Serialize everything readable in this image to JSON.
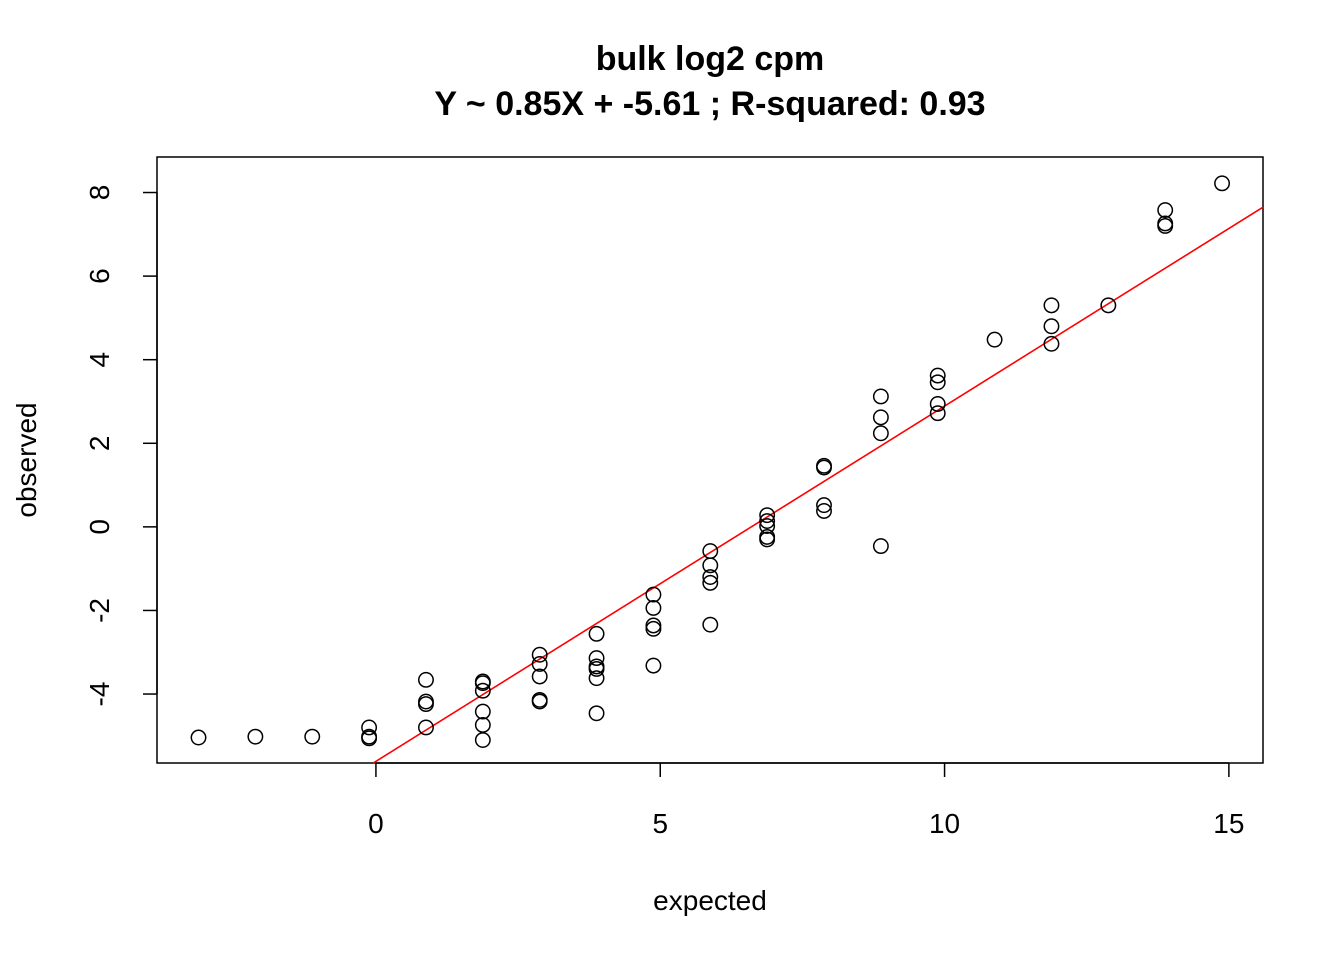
{
  "chart_data": {
    "type": "scatter",
    "title": "bulk log2 cpm",
    "subtitle": "Y ~ 0.85X + -5.61 ; R-squared: 0.93",
    "xlabel": "expected",
    "ylabel": "observed",
    "xlim": [
      -3.85,
      15.6
    ],
    "ylim": [
      -5.65,
      8.85
    ],
    "xticks": [
      0,
      5,
      10,
      15
    ],
    "yticks": [
      -4,
      -2,
      0,
      2,
      4,
      6,
      8
    ],
    "grid": false,
    "regression": {
      "slope": 0.85,
      "intercept": -5.61,
      "color": "#ff0000"
    },
    "series": [
      {
        "points": [
          [
            -3.12,
            -5.04
          ],
          [
            -2.12,
            -5.02
          ],
          [
            -1.12,
            -5.02
          ],
          [
            -0.12,
            -4.8
          ],
          [
            -0.12,
            -5.02
          ],
          [
            -0.12,
            -5.06
          ],
          [
            0.88,
            -3.66
          ],
          [
            0.88,
            -4.18
          ],
          [
            0.88,
            -4.24
          ],
          [
            0.88,
            -4.8
          ],
          [
            1.88,
            -3.7
          ],
          [
            1.88,
            -3.74
          ],
          [
            1.88,
            -3.92
          ],
          [
            1.88,
            -4.42
          ],
          [
            1.88,
            -4.74
          ],
          [
            1.88,
            -5.1
          ],
          [
            2.88,
            -3.06
          ],
          [
            2.88,
            -3.28
          ],
          [
            2.88,
            -3.58
          ],
          [
            2.88,
            -4.14
          ],
          [
            2.88,
            -4.18
          ],
          [
            3.88,
            -2.56
          ],
          [
            3.88,
            -3.14
          ],
          [
            3.88,
            -3.34
          ],
          [
            3.88,
            -3.4
          ],
          [
            3.88,
            -3.62
          ],
          [
            3.88,
            -4.46
          ],
          [
            4.88,
            -1.62
          ],
          [
            4.88,
            -1.94
          ],
          [
            4.88,
            -2.36
          ],
          [
            4.88,
            -2.44
          ],
          [
            4.88,
            -3.32
          ],
          [
            5.88,
            -0.58
          ],
          [
            5.88,
            -0.92
          ],
          [
            5.88,
            -1.2
          ],
          [
            5.88,
            -1.34
          ],
          [
            5.88,
            -2.34
          ],
          [
            6.88,
            0.28
          ],
          [
            6.88,
            0.14
          ],
          [
            6.88,
            0.02
          ],
          [
            6.88,
            -0.24
          ],
          [
            6.88,
            -0.3
          ],
          [
            7.88,
            1.46
          ],
          [
            7.88,
            1.42
          ],
          [
            7.88,
            0.52
          ],
          [
            7.88,
            0.38
          ],
          [
            8.88,
            3.12
          ],
          [
            8.88,
            2.62
          ],
          [
            8.88,
            2.24
          ],
          [
            8.88,
            -0.46
          ],
          [
            9.88,
            3.62
          ],
          [
            9.88,
            3.46
          ],
          [
            9.88,
            2.94
          ],
          [
            9.88,
            2.72
          ],
          [
            10.88,
            4.48
          ],
          [
            11.88,
            5.3
          ],
          [
            11.88,
            4.8
          ],
          [
            11.88,
            4.38
          ],
          [
            12.88,
            5.3
          ],
          [
            13.88,
            7.58
          ],
          [
            13.88,
            7.26
          ],
          [
            13.88,
            7.2
          ],
          [
            14.88,
            8.22
          ]
        ]
      }
    ]
  }
}
